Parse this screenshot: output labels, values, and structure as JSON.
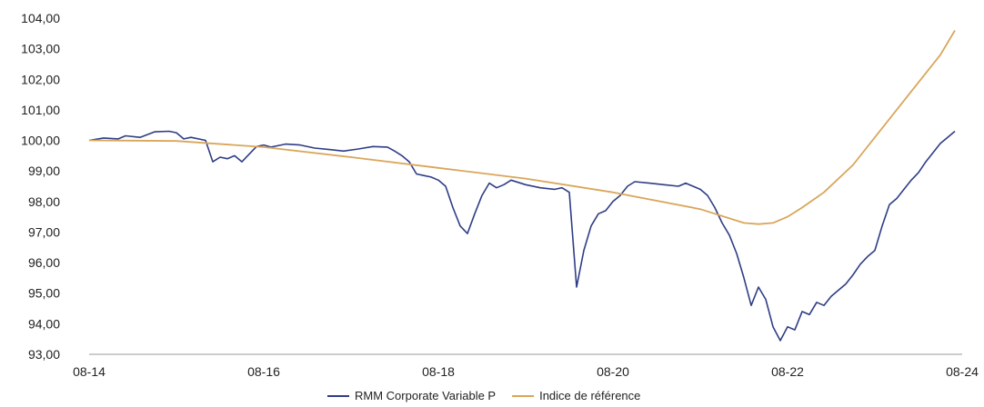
{
  "chart_data": {
    "type": "line",
    "title": "",
    "xlabel": "",
    "ylabel": "",
    "ylim": [
      93,
      104
    ],
    "y_ticks": [
      "93,00",
      "94,00",
      "95,00",
      "96,00",
      "97,00",
      "98,00",
      "99,00",
      "100,00",
      "101,00",
      "102,00",
      "103,00",
      "104,00"
    ],
    "x_ticks": [
      {
        "date": "2014-08",
        "label": "08-14"
      },
      {
        "date": "2016-08",
        "label": "08-16"
      },
      {
        "date": "2018-08",
        "label": "08-18"
      },
      {
        "date": "2020-08",
        "label": "08-20"
      },
      {
        "date": "2022-08",
        "label": "08-22"
      },
      {
        "date": "2024-08",
        "label": "08-24"
      }
    ],
    "grid": false,
    "legend_position": "bottom-center",
    "series": [
      {
        "name": "RMM Corporate Variable P",
        "color": "#2e3d85",
        "points": [
          [
            "2014-08",
            100.0
          ],
          [
            "2014-10",
            100.08
          ],
          [
            "2014-12",
            100.05
          ],
          [
            "2015-01",
            100.15
          ],
          [
            "2015-03",
            100.1
          ],
          [
            "2015-05",
            100.28
          ],
          [
            "2015-07",
            100.3
          ],
          [
            "2015-08",
            100.25
          ],
          [
            "2015-09",
            100.05
          ],
          [
            "2015-10",
            100.1
          ],
          [
            "2015-12",
            100.0
          ],
          [
            "2016-01",
            99.3
          ],
          [
            "2016-02",
            99.45
          ],
          [
            "2016-03",
            99.4
          ],
          [
            "2016-04",
            99.5
          ],
          [
            "2016-05",
            99.3
          ],
          [
            "2016-06",
            99.55
          ],
          [
            "2016-07",
            99.8
          ],
          [
            "2016-08",
            99.85
          ],
          [
            "2016-09",
            99.78
          ],
          [
            "2016-11",
            99.88
          ],
          [
            "2017-01",
            99.85
          ],
          [
            "2017-03",
            99.75
          ],
          [
            "2017-05",
            99.7
          ],
          [
            "2017-07",
            99.65
          ],
          [
            "2017-09",
            99.72
          ],
          [
            "2017-11",
            99.8
          ],
          [
            "2018-01",
            99.78
          ],
          [
            "2018-02",
            99.65
          ],
          [
            "2018-03",
            99.5
          ],
          [
            "2018-04",
            99.3
          ],
          [
            "2018-05",
            98.9
          ],
          [
            "2018-06",
            98.85
          ],
          [
            "2018-07",
            98.8
          ],
          [
            "2018-08",
            98.7
          ],
          [
            "2018-09",
            98.5
          ],
          [
            "2018-10",
            97.8
          ],
          [
            "2018-11",
            97.2
          ],
          [
            "2018-12",
            96.95
          ],
          [
            "2019-01",
            97.6
          ],
          [
            "2019-02",
            98.2
          ],
          [
            "2019-03",
            98.6
          ],
          [
            "2019-04",
            98.45
          ],
          [
            "2019-05",
            98.55
          ],
          [
            "2019-06",
            98.7
          ],
          [
            "2019-08",
            98.55
          ],
          [
            "2019-10",
            98.45
          ],
          [
            "2019-12",
            98.4
          ],
          [
            "2020-01",
            98.45
          ],
          [
            "2020-02",
            98.3
          ],
          [
            "2020-03",
            95.2
          ],
          [
            "2020-04",
            96.4
          ],
          [
            "2020-05",
            97.2
          ],
          [
            "2020-06",
            97.6
          ],
          [
            "2020-07",
            97.7
          ],
          [
            "2020-08",
            98.0
          ],
          [
            "2020-09",
            98.2
          ],
          [
            "2020-10",
            98.5
          ],
          [
            "2020-11",
            98.65
          ],
          [
            "2021-01",
            98.6
          ],
          [
            "2021-03",
            98.55
          ],
          [
            "2021-05",
            98.5
          ],
          [
            "2021-06",
            98.6
          ],
          [
            "2021-07",
            98.5
          ],
          [
            "2021-08",
            98.4
          ],
          [
            "2021-09",
            98.2
          ],
          [
            "2021-10",
            97.8
          ],
          [
            "2021-11",
            97.3
          ],
          [
            "2021-12",
            96.9
          ],
          [
            "2022-01",
            96.3
          ],
          [
            "2022-02",
            95.5
          ],
          [
            "2022-03",
            94.6
          ],
          [
            "2022-04",
            95.2
          ],
          [
            "2022-05",
            94.8
          ],
          [
            "2022-06",
            93.9
          ],
          [
            "2022-07",
            93.45
          ],
          [
            "2022-08",
            93.9
          ],
          [
            "2022-09",
            93.8
          ],
          [
            "2022-10",
            94.4
          ],
          [
            "2022-11",
            94.3
          ],
          [
            "2022-12",
            94.7
          ],
          [
            "2023-01",
            94.6
          ],
          [
            "2023-02",
            94.9
          ],
          [
            "2023-03",
            95.1
          ],
          [
            "2023-04",
            95.3
          ],
          [
            "2023-05",
            95.6
          ],
          [
            "2023-06",
            95.95
          ],
          [
            "2023-07",
            96.2
          ],
          [
            "2023-08",
            96.4
          ],
          [
            "2023-09",
            97.2
          ],
          [
            "2023-10",
            97.9
          ],
          [
            "2023-11",
            98.1
          ],
          [
            "2023-12",
            98.4
          ],
          [
            "2024-01",
            98.7
          ],
          [
            "2024-02",
            98.95
          ],
          [
            "2024-03",
            99.3
          ],
          [
            "2024-04",
            99.6
          ],
          [
            "2024-05",
            99.9
          ],
          [
            "2024-06",
            100.1
          ],
          [
            "2024-07",
            100.3
          ]
        ]
      },
      {
        "name": "Indice de référence",
        "color": "#d9a65b",
        "points": [
          [
            "2014-08",
            100.0
          ],
          [
            "2015-08",
            99.98
          ],
          [
            "2016-08",
            99.78
          ],
          [
            "2017-08",
            99.45
          ],
          [
            "2018-08",
            99.1
          ],
          [
            "2019-08",
            98.75
          ],
          [
            "2020-08",
            98.3
          ],
          [
            "2021-08",
            97.75
          ],
          [
            "2022-02",
            97.3
          ],
          [
            "2022-04",
            97.26
          ],
          [
            "2022-06",
            97.3
          ],
          [
            "2022-08",
            97.5
          ],
          [
            "2022-10",
            97.8
          ],
          [
            "2023-01",
            98.3
          ],
          [
            "2023-05",
            99.2
          ],
          [
            "2023-09",
            100.4
          ],
          [
            "2024-01",
            101.6
          ],
          [
            "2024-05",
            102.8
          ],
          [
            "2024-07",
            103.6
          ]
        ]
      }
    ]
  }
}
